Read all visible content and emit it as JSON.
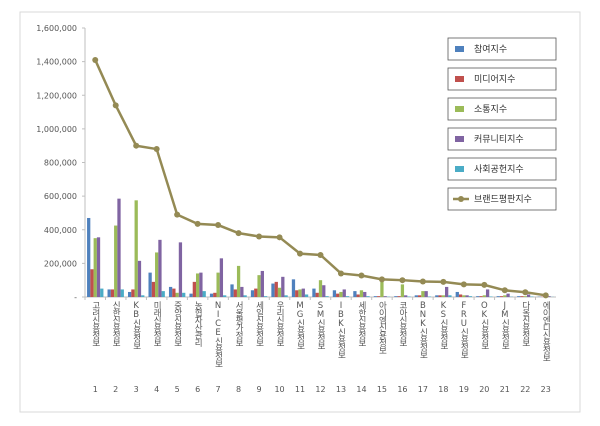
{
  "chart_data": {
    "type": "bar",
    "categories": [
      "고려신용정보",
      "신한신용정보",
      "KB신용정보",
      "미래신용정보",
      "중앙신용정보",
      "농협자산관리",
      "NICE신용정보",
      "서울평가정보",
      "세일신용정보",
      "우리신용정보",
      "MG신용정보",
      "SM신용정보",
      "IBK신용정보",
      "세한신용정보",
      "아이엠신용정보",
      "코아신용정보",
      "BNK신용정보",
      "KS신용정보",
      "FRU신용정보",
      "OK신용정보",
      "JM신용정보",
      "다올신용정보",
      "에이엔디신용정보"
    ],
    "ranks": [
      1,
      2,
      3,
      4,
      5,
      6,
      7,
      8,
      9,
      10,
      11,
      12,
      13,
      14,
      15,
      16,
      17,
      18,
      19,
      20,
      21,
      22,
      23
    ],
    "series": [
      {
        "name": "참여지수",
        "color": "#4f81bd",
        "values": [
          470000,
          45000,
          30000,
          145000,
          60000,
          20000,
          20000,
          75000,
          40000,
          80000,
          105000,
          50000,
          40000,
          35000,
          5000,
          5000,
          10000,
          10000,
          30000,
          5000,
          5000,
          5000,
          2000
        ]
      },
      {
        "name": "미디어지수",
        "color": "#c0504d",
        "values": [
          165000,
          45000,
          45000,
          90000,
          50000,
          90000,
          25000,
          45000,
          50000,
          90000,
          40000,
          25000,
          20000,
          15000,
          5000,
          5000,
          10000,
          10000,
          15000,
          5000,
          5000,
          5000,
          2000
        ]
      },
      {
        "name": "소통지수",
        "color": "#9bbb59",
        "values": [
          350000,
          425000,
          575000,
          265000,
          25000,
          140000,
          145000,
          185000,
          130000,
          55000,
          45000,
          100000,
          30000,
          40000,
          90000,
          75000,
          35000,
          10000,
          10000,
          10000,
          10000,
          5000,
          3000
        ]
      },
      {
        "name": "커뮤니티지수",
        "color": "#8064a2",
        "values": [
          355000,
          585000,
          215000,
          340000,
          325000,
          145000,
          230000,
          60000,
          155000,
          120000,
          50000,
          70000,
          45000,
          30000,
          5000,
          10000,
          35000,
          60000,
          10000,
          45000,
          20000,
          15000,
          5000
        ]
      },
      {
        "name": "사회공헌지수",
        "color": "#4bacc6",
        "values": [
          50000,
          45000,
          10000,
          35000,
          25000,
          35000,
          10000,
          10000,
          5000,
          10000,
          15000,
          5000,
          5000,
          5000,
          2000,
          3000,
          3000,
          10000,
          5000,
          3000,
          2000,
          3000,
          1000
        ]
      },
      {
        "name": "브랜드평판지수",
        "color": "#948a54",
        "type": "line",
        "values": [
          1410000,
          1140000,
          900000,
          880000,
          490000,
          435000,
          428000,
          380000,
          360000,
          355000,
          258000,
          250000,
          140000,
          128000,
          105000,
          100000,
          92000,
          90000,
          75000,
          72000,
          40000,
          28000,
          10000
        ]
      }
    ],
    "ylim": [
      0,
      1600000
    ],
    "yticks": [
      {
        "value": 0,
        "label": "-"
      },
      {
        "value": 200000,
        "label": "200,000"
      },
      {
        "value": 400000,
        "label": "400,000"
      },
      {
        "value": 600000,
        "label": "600,000"
      },
      {
        "value": 800000,
        "label": "800,000"
      },
      {
        "value": 1000000,
        "label": "1,000,000"
      },
      {
        "value": 1200000,
        "label": "1,200,000"
      },
      {
        "value": 1400000,
        "label": "1,400,000"
      },
      {
        "value": 1600000,
        "label": "1,600,000"
      }
    ],
    "grid": false
  }
}
